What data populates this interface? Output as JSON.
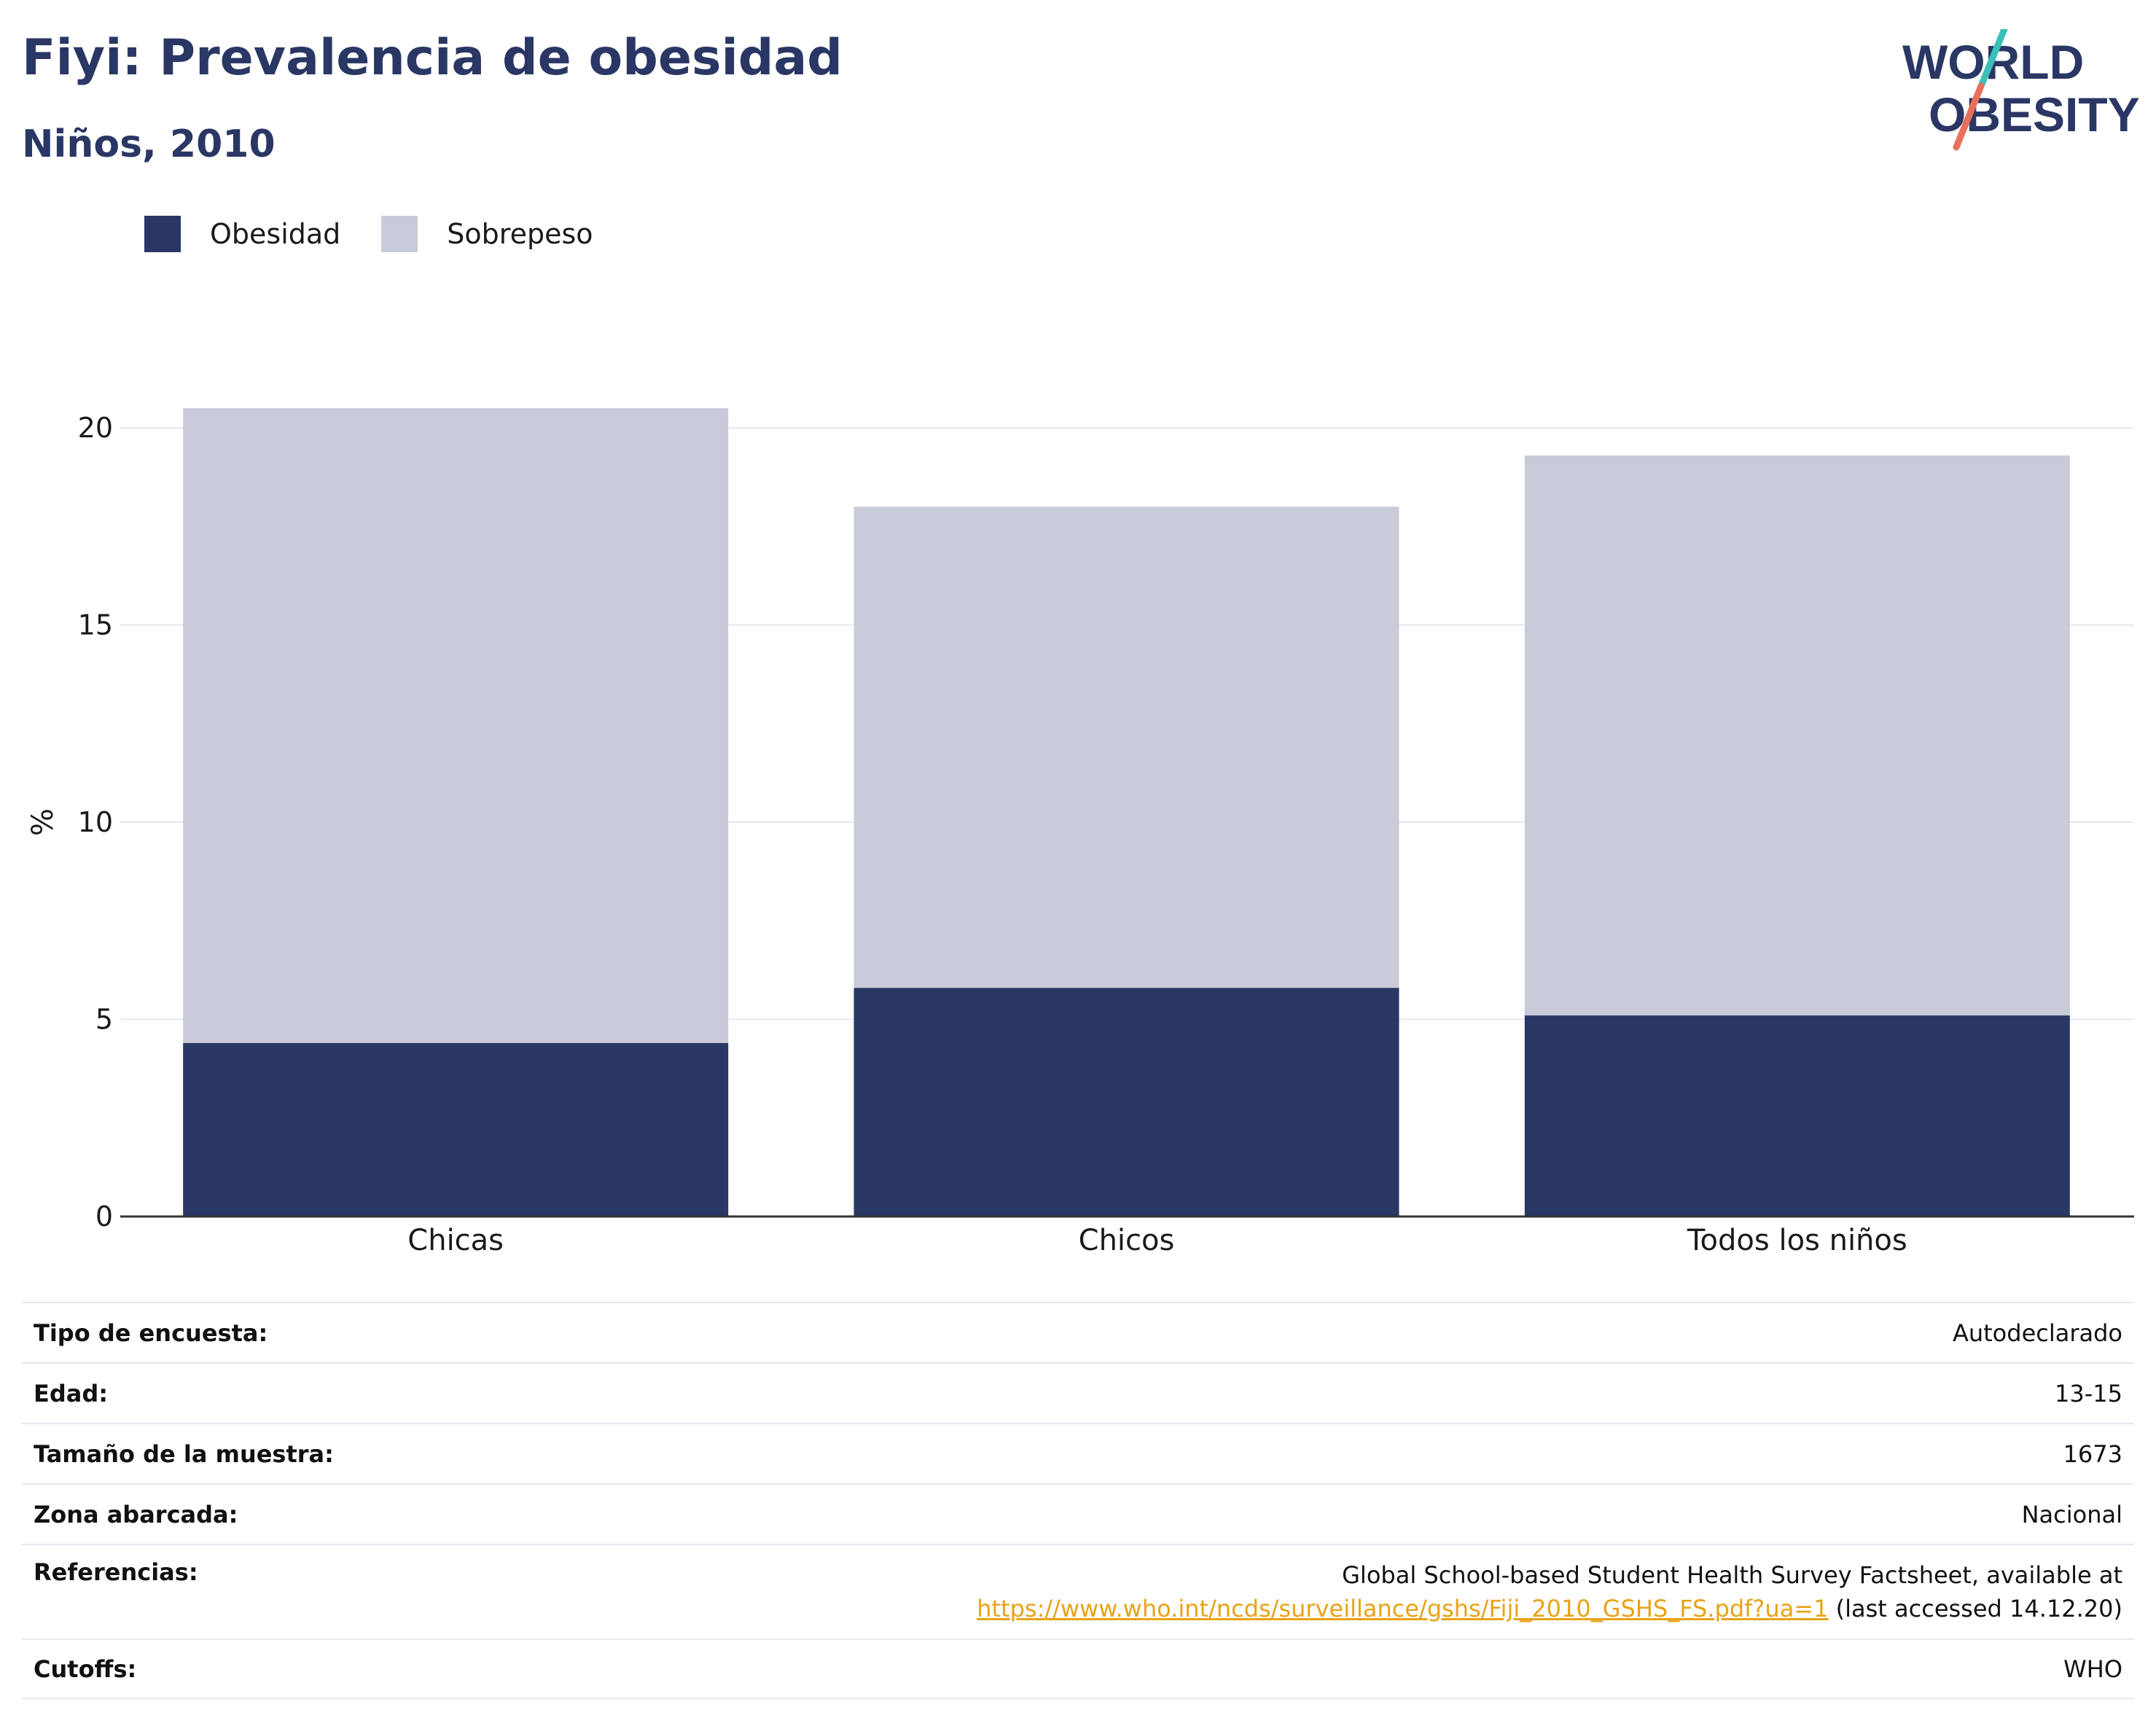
{
  "header": {
    "title": "Fiyi: Prevalencia de obesidad",
    "subtitle": "Niños, 2010"
  },
  "logo": {
    "line1": "WORLD",
    "line2": "OBESITY",
    "colors": {
      "navy": "#2a3764",
      "teal": "#3bbfb8",
      "coral": "#e8705b"
    }
  },
  "colors": {
    "obesity": "#2a3764",
    "overweight": "#c9ccd8",
    "grid": "#e6e8f0",
    "axis": "#333333",
    "link": "#e8a317"
  },
  "chart_data": {
    "type": "bar",
    "stacked": true,
    "categories": [
      "Chicas",
      "Chicos",
      "Todos los niños"
    ],
    "series": [
      {
        "name": "Obesidad",
        "values": [
          4.4,
          5.8,
          5.1
        ],
        "color": "#2a3764"
      },
      {
        "name": "Sobrepeso",
        "values": [
          16.1,
          12.2,
          14.2
        ],
        "color": "#c9ccd8"
      }
    ],
    "ylabel": "%",
    "xlabel": "",
    "ylim": [
      0,
      22
    ],
    "yticks": [
      0,
      5,
      10,
      15,
      20
    ],
    "grid": true,
    "legend_position": "top-left"
  },
  "info": {
    "rows": [
      {
        "label": "Tipo de encuesta:",
        "value": "Autodeclarado"
      },
      {
        "label": "Edad:",
        "value": "13-15"
      },
      {
        "label": "Tamaño de la muestra:",
        "value": "1673"
      },
      {
        "label": "Zona abarcada:",
        "value": "Nacional"
      }
    ],
    "references": {
      "label": "Referencias:",
      "line1": "Global School-based Student Health Survey Factsheet, available at",
      "link": "https://www.who.int/ncds/surveillance/gshs/Fiji_2010_GSHS_FS.pdf?ua=1",
      "suffix": " (last accessed 14.12.20)"
    },
    "cutoffs": {
      "label": "Cutoffs:",
      "value": "WHO"
    }
  }
}
